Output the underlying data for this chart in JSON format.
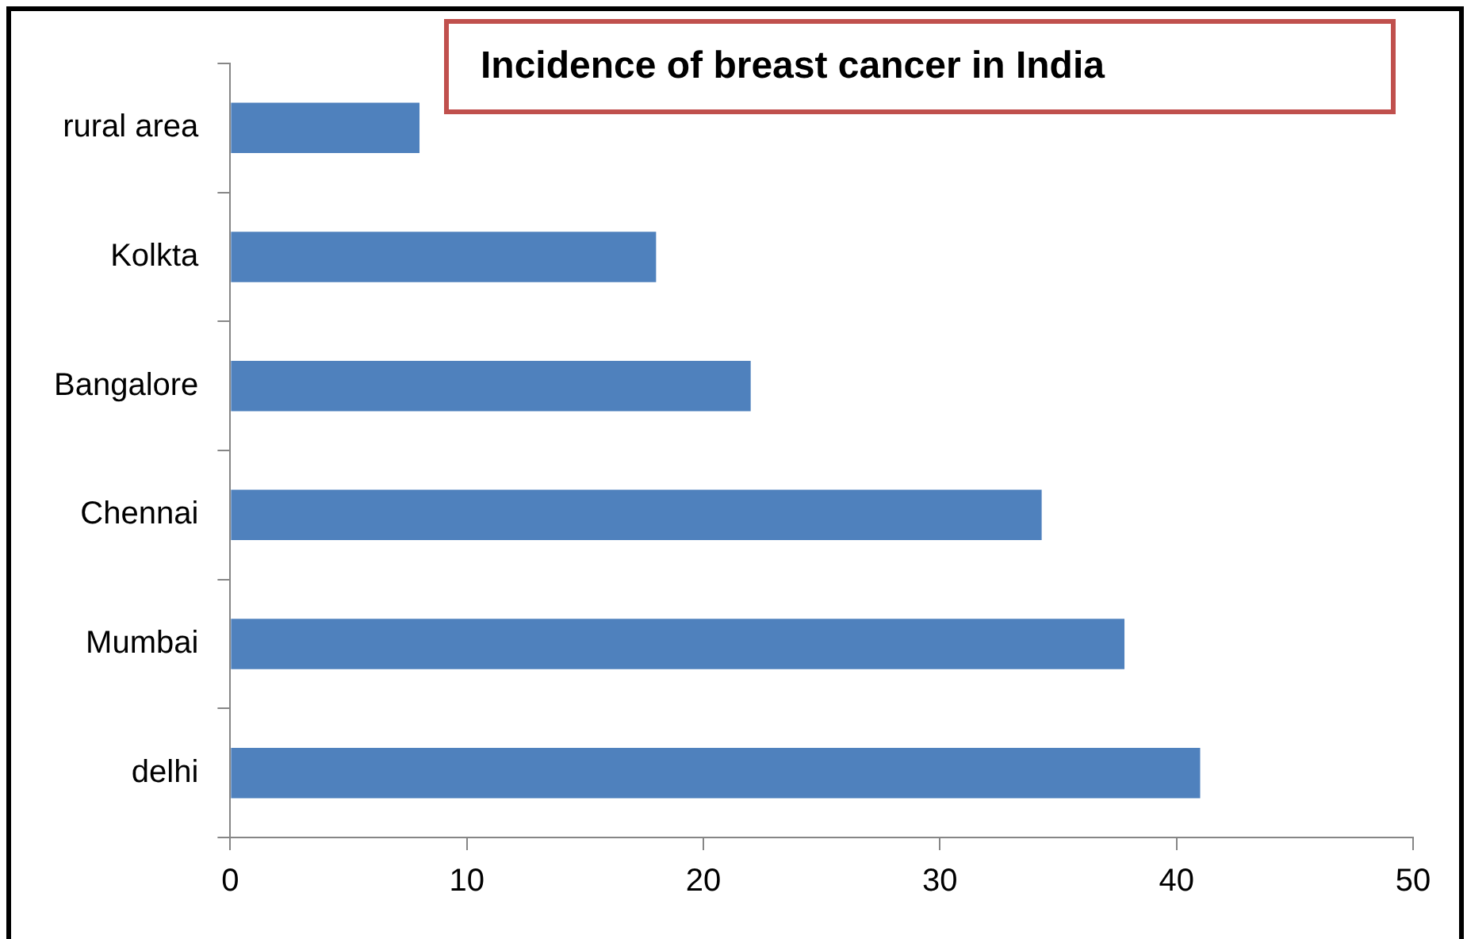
{
  "chart_data": {
    "type": "bar",
    "orientation": "horizontal",
    "title": "Incidence of breast cancer in India",
    "categories": [
      "rural area",
      "Kolkta",
      "Bangalore",
      "Chennai",
      "Mumbai",
      "delhi"
    ],
    "values": [
      8,
      18,
      22,
      34.3,
      37.8,
      41
    ],
    "color": "#4f81bd",
    "xlim": [
      0,
      50
    ],
    "xticks": [
      0,
      10,
      20,
      30,
      40,
      50
    ],
    "grid": false,
    "legend": false
  }
}
